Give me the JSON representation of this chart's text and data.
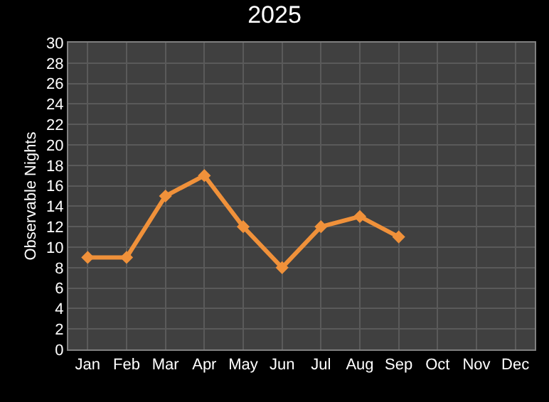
{
  "chart_data": {
    "type": "line",
    "title": "2025",
    "ylabel": "Observable Nights",
    "categories": [
      "Jan",
      "Feb",
      "Mar",
      "Apr",
      "May",
      "Jun",
      "Jul",
      "Aug",
      "Sep",
      "Oct",
      "Nov",
      "Dec"
    ],
    "series": [
      {
        "color": "#f0913a",
        "values": [
          9,
          9,
          15,
          17,
          12,
          8,
          12,
          13,
          11,
          null,
          null,
          null
        ]
      }
    ],
    "ylim": [
      0,
      30
    ],
    "yticks": [
      0,
      2,
      4,
      6,
      8,
      10,
      12,
      14,
      16,
      18,
      20,
      22,
      24,
      26,
      28,
      30
    ],
    "grid": true,
    "marker": "diamond",
    "line_style": "solid"
  }
}
